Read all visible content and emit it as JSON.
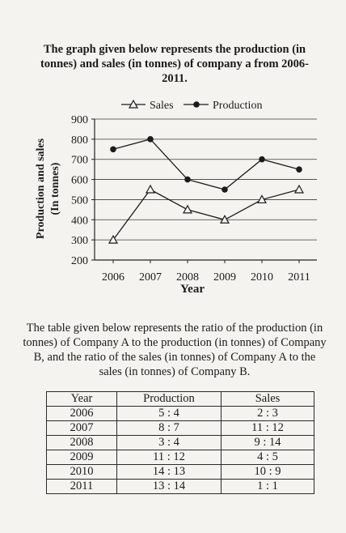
{
  "chart_title": "The graph given below represents the production (in tonnes) and sales (in tonnes) of company a from 2006-2011.",
  "chart_data": {
    "type": "line",
    "title": "The graph given below represents the production (in tonnes) and sales (in tonnes) of company a from 2006-2011.",
    "xlabel": "Year",
    "ylabel": "Production and sales (In tonnes)",
    "ylabel_line1": "Production and sales",
    "ylabel_line2": "(In tonnes)",
    "x": [
      "2006",
      "2007",
      "2008",
      "2009",
      "2010",
      "2011"
    ],
    "ylim": [
      200,
      900
    ],
    "yticks": [
      200,
      300,
      400,
      500,
      600,
      700,
      800,
      900
    ],
    "grid": true,
    "legend": "top",
    "series": [
      {
        "name": "Sales",
        "marker": "triangle-open",
        "values": [
          300,
          550,
          450,
          400,
          500,
          550
        ]
      },
      {
        "name": "Production",
        "marker": "circle-filled",
        "values": [
          750,
          800,
          600,
          550,
          700,
          650
        ]
      }
    ]
  },
  "description": "The table given below represents the ratio of the production (in tonnes) of Company A to the production (in tonnes) of Company B, and the ratio of the sales (in tonnes) of Company A to the sales (in tonnes) of Company B.",
  "table": {
    "headers": [
      "Year",
      "Production",
      "Sales"
    ],
    "rows": [
      [
        "2006",
        "5 : 4",
        "2 : 3"
      ],
      [
        "2007",
        "8 : 7",
        "11 : 12"
      ],
      [
        "2008",
        "3 : 4",
        "9 : 14"
      ],
      [
        "2009",
        "11 : 12",
        "4 : 5"
      ],
      [
        "2010",
        "14 : 13",
        "10 : 9"
      ],
      [
        "2011",
        "13 : 14",
        "1 : 1"
      ]
    ]
  }
}
